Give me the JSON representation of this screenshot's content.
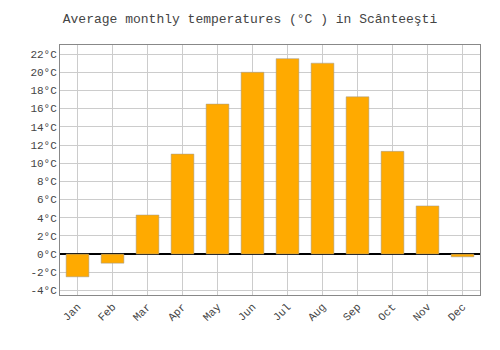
{
  "chart_data": {
    "type": "bar",
    "title": "Average monthly temperatures (°C ) in Scânteeşti",
    "categories": [
      "Jan",
      "Feb",
      "Mar",
      "Apr",
      "May",
      "Jun",
      "Jul",
      "Aug",
      "Sep",
      "Oct",
      "Nov",
      "Dec"
    ],
    "values": [
      -2.5,
      -1.0,
      4.3,
      11.0,
      16.5,
      20.0,
      21.5,
      21.0,
      17.3,
      11.3,
      5.3,
      -0.3
    ],
    "color": "#FFAA00",
    "ylim": [
      -4.5,
      23
    ],
    "yticks": [
      {
        "value": -4,
        "label": "-4°C"
      },
      {
        "value": -2,
        "label": "-2°C"
      },
      {
        "value": 0,
        "label": "0°C"
      },
      {
        "value": 2,
        "label": "2°C"
      },
      {
        "value": 4,
        "label": "4°C"
      },
      {
        "value": 6,
        "label": "6°C"
      },
      {
        "value": 8,
        "label": "8°C"
      },
      {
        "value": 10,
        "label": "10°C"
      },
      {
        "value": 12,
        "label": "12°C"
      },
      {
        "value": 14,
        "label": "14°C"
      },
      {
        "value": 16,
        "label": "16°C"
      },
      {
        "value": 18,
        "label": "18°C"
      },
      {
        "value": 20,
        "label": "20°C"
      },
      {
        "value": 22,
        "label": "22°C"
      }
    ],
    "grid": true
  }
}
